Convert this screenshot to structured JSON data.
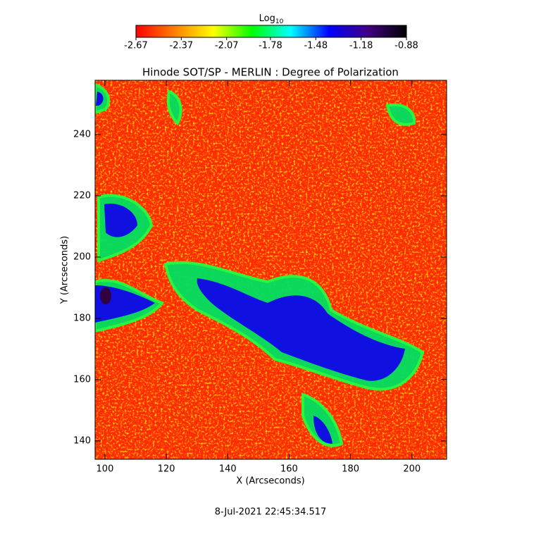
{
  "chart_data": {
    "type": "image",
    "title": "Hinode SOT/SP - MERLIN : Degree of Polarization",
    "xlabel": "X (Arcseconds)",
    "ylabel": "Y (Arcseconds)",
    "footer": "8-Jul-2021 22:45:34.517",
    "colorbar_label": "Log",
    "colorbar_label_sub": "10",
    "clim": [
      -2.67,
      -0.88
    ],
    "cticks": [
      -2.67,
      -2.37,
      -2.07,
      -1.78,
      -1.48,
      -1.18,
      -0.88
    ],
    "colormap": [
      "#ff0000",
      "#ff8000",
      "#ffff00",
      "#00ff00",
      "#00ffff",
      "#0000ff",
      "#400080",
      "#000000"
    ],
    "xlim": [
      96.8,
      211.3
    ],
    "ylim": [
      134.0,
      257.7
    ],
    "xticks": [
      100,
      120,
      140,
      160,
      180,
      200
    ],
    "yticks": [
      140,
      160,
      180,
      200,
      220,
      240
    ]
  }
}
